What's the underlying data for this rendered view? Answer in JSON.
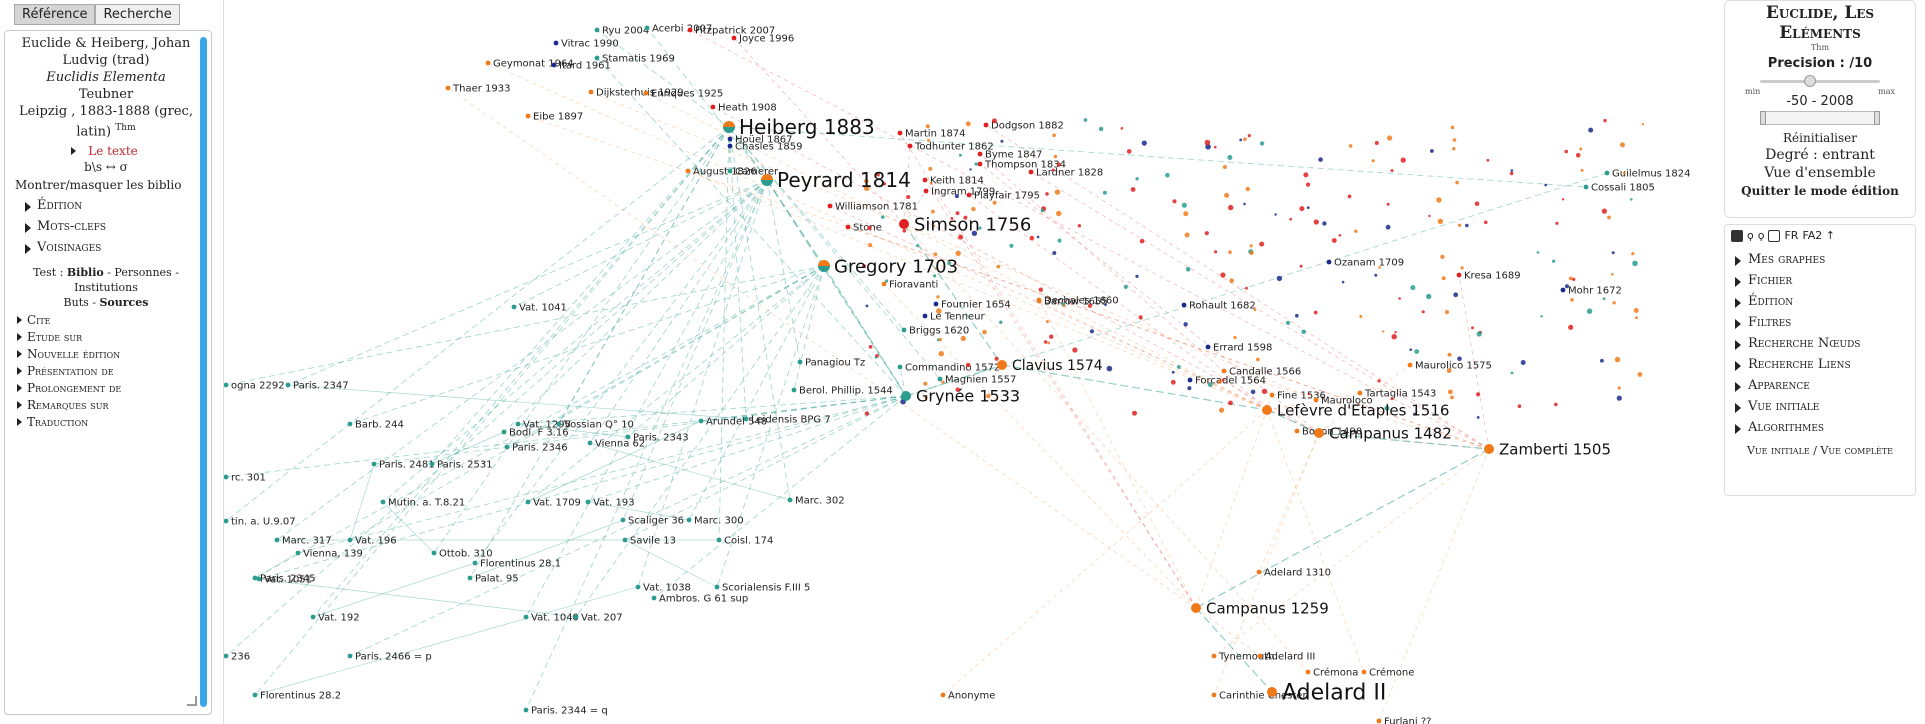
{
  "tabs": {
    "reference": "Référence",
    "recherche": "Recherche"
  },
  "biblio": {
    "author": "Euclide & Heiberg, Johan Ludvig (trad)",
    "title": "Euclidis Elementa",
    "publisher": "Teubner",
    "place": "Leipzig , 1883-1888 (grec, latin)",
    "thm": "Thm",
    "text_link": "Le texte",
    "symbols": "b\\s ↔ σ",
    "toggle": "Montrer/masquer les biblio"
  },
  "left_sections": [
    "Édition",
    "Mots-clefs",
    "Voisinages"
  ],
  "test": {
    "prefix": "Test : ",
    "biblio": "Biblio",
    "sep1": " - Personnes - ",
    "institutions": "Institutions",
    "buts_prefix": "Buts - ",
    "sources": "Sources"
  },
  "left_sections2": [
    "Cite",
    "Etude sur",
    "Nouvelle édition",
    "Présentation de",
    "Prolongement de",
    "Remarques sur",
    "Traduction"
  ],
  "right_top": {
    "title": "Euclide, Les Eléments",
    "thm": "Thm",
    "precision": "Precision : /10",
    "min": "min",
    "max": "max",
    "years": "-50 - 2008",
    "reinit": "Réinitialiser",
    "degree": "Degré : entrant",
    "overview": "Vue d'ensemble",
    "quit": "Quitter le mode édition"
  },
  "right_toolbar": {
    "fr": "FR",
    "fa2": "FA2 ↑"
  },
  "right_menu": [
    "Mes graphes",
    "Fichier",
    "Édition",
    "Filtres",
    "Recherche Nœuds",
    "Recherche Liens",
    "Apparence",
    "Vue initiale",
    "Algorithmes"
  ],
  "right_footer": "Vue initiale /  Vue complète",
  "colors": {
    "teal": "#2a9d8f",
    "orange": "#f07a1a",
    "red": "#e02020",
    "navy": "#1a2a8c",
    "link_blue": "#3aa7e6"
  },
  "graph": {
    "big_labels": [
      "Heiberg 1883",
      "Peyrard 1814",
      "Simson 1756",
      "Gregory 1703",
      "Clavius 1574",
      "Grynée 1533",
      "Lefèvre d'Etaples 1516",
      "Campanus 1482",
      "Zamberti 1505",
      "Campanus 1259",
      "Adelard II"
    ],
    "labels": [
      "Ryu 2004",
      "Acerbi 2007",
      "Fitzpatrick 2007",
      "Vitrac 1990",
      "Joyce 1996",
      "Geymonat 1964",
      "Itard 1961",
      "Stamatis 1969",
      "Thaer 1933",
      "Dijksterhuis 1929",
      "Enriques 1925",
      "Heath 1908",
      "Eibe 1897",
      "Hoüel 1867",
      "Chasles 1859",
      "August 1826",
      "Camerer",
      "Dodgson 1882",
      "Martin 1874",
      "Todhunter 1862",
      "Byme 1847",
      "Thompson 1834",
      "Lardner 1828",
      "Keith 1814",
      "Ingram 1799",
      "Playfair 1795",
      "Williamson 1781",
      "Stone",
      "Fioravanti",
      "Vat. 1041",
      "Fournier 1654",
      "Le Tenneur",
      "Briggs 1620",
      "Dechales 1660",
      "Rohault 1682",
      "Barrow 1655",
      "Ozanam 1709",
      "Kresa 1689",
      "Mohr 1672",
      "Guilelmus 1824",
      "Cossali 1805",
      "Panagiou Tz",
      "Berol. Phillip. 1544",
      "Commandino 1572",
      "Magnien 1557",
      "Errard 1598",
      "Forcadel 1564",
      "Candalle 1566",
      "Fine 1536",
      "Mauroloco",
      "Tartaglia 1543",
      "Maurolico 1575",
      "Boeon 1490",
      "Paris. 2347",
      "Barb. 244",
      "Vat. 1295",
      "Vossian Q° 10",
      "Bodl. F 3.16",
      "Paris. 2346",
      "Arundel 548",
      "Leidensis BPG 7",
      "Vienna 62",
      "Paris. 2343",
      "Paris. 2481",
      "Paris. 2531",
      "Mutin. a. T.8.21",
      "Vat. 1709",
      "Vat. 193",
      "Marc. 302",
      "Marc. 317",
      "Vat. 196",
      "Vienna, 139",
      "Ottob. 310",
      "Scaliger 36",
      "Marc. 300",
      "Savile 13",
      "Coisl. 174",
      "Florentinus 28.1",
      "Paris. 2345",
      "Vat. 1051",
      "Palat. 95",
      "Vat. 1038",
      "Scorialensis F.III 5",
      "Ambros. G 61 sup",
      "Vat. 192",
      "Vat. 1040",
      "Vat. 207",
      "Paris. 2466 = p",
      "Florentinus 28.2",
      "Paris. 2344 = q",
      "Anonyme",
      "Adelard 1310",
      "Tynemouth",
      "Adelard III",
      "Crémona",
      "Crémone",
      "Carinthie Chester",
      "Furlani ??",
      "ogna 2292",
      "rc. 301",
      "tin. a. U.9.07",
      "236"
    ]
  }
}
